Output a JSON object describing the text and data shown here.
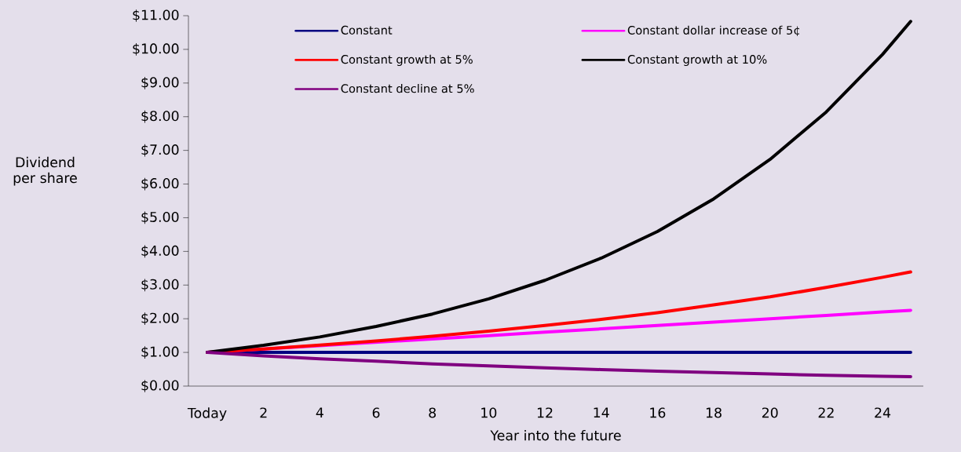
{
  "chart_data": {
    "type": "line",
    "xlabel": "Year into the future",
    "ylabel": "Dividend per share",
    "x": [
      0,
      2,
      4,
      6,
      8,
      10,
      12,
      14,
      16,
      18,
      20,
      22,
      24,
      25
    ],
    "series": [
      {
        "name": "Constant",
        "color": "#000080",
        "values": [
          1,
          1,
          1,
          1,
          1,
          1,
          1,
          1,
          1,
          1,
          1,
          1,
          1,
          1
        ]
      },
      {
        "name": "Constant dollar increase of 5¢",
        "color": "#ff00ff",
        "values": [
          1,
          1.1,
          1.2,
          1.3,
          1.4,
          1.5,
          1.6,
          1.7,
          1.8,
          1.9,
          2.0,
          2.1,
          2.2,
          2.25
        ]
      },
      {
        "name": "Constant growth at 5%",
        "color": "#ff0000",
        "values": [
          1,
          1.1,
          1.22,
          1.34,
          1.48,
          1.63,
          1.8,
          1.98,
          2.18,
          2.41,
          2.65,
          2.93,
          3.23,
          3.39
        ]
      },
      {
        "name": "Constant growth at 10%",
        "color": "#000000",
        "values": [
          1,
          1.21,
          1.46,
          1.77,
          2.14,
          2.59,
          3.14,
          3.8,
          4.59,
          5.56,
          6.73,
          8.14,
          9.85,
          10.83
        ]
      },
      {
        "name": "Constant decline at 5%",
        "color": "#800080",
        "values": [
          1,
          0.9,
          0.81,
          0.74,
          0.66,
          0.6,
          0.54,
          0.49,
          0.44,
          0.4,
          0.36,
          0.32,
          0.29,
          0.28
        ]
      }
    ],
    "xlim": [
      -0.67,
      25.45
    ],
    "ylim": [
      0,
      11
    ],
    "xticks": [
      {
        "value": 0,
        "label": "Today"
      },
      2,
      4,
      6,
      8,
      10,
      12,
      14,
      16,
      18,
      20,
      22,
      24
    ],
    "yticks": [
      {
        "value": 0,
        "label": "$0.00"
      },
      {
        "value": 1,
        "label": "$1.00"
      },
      {
        "value": 2,
        "label": "$2.00"
      },
      {
        "value": 3,
        "label": "$3.00"
      },
      {
        "value": 4,
        "label": "$4.00"
      },
      {
        "value": 5,
        "label": "$5.00"
      },
      {
        "value": 6,
        "label": "$6.00"
      },
      {
        "value": 7,
        "label": "$7.00"
      },
      {
        "value": 8,
        "label": "$8.00"
      },
      {
        "value": 9,
        "label": "$9.00"
      },
      {
        "value": 10,
        "label": "$10.00"
      },
      {
        "value": 11,
        "label": "$11.00"
      }
    ],
    "grid": false,
    "legend": "top",
    "marker": "none",
    "line_style": "solid"
  }
}
